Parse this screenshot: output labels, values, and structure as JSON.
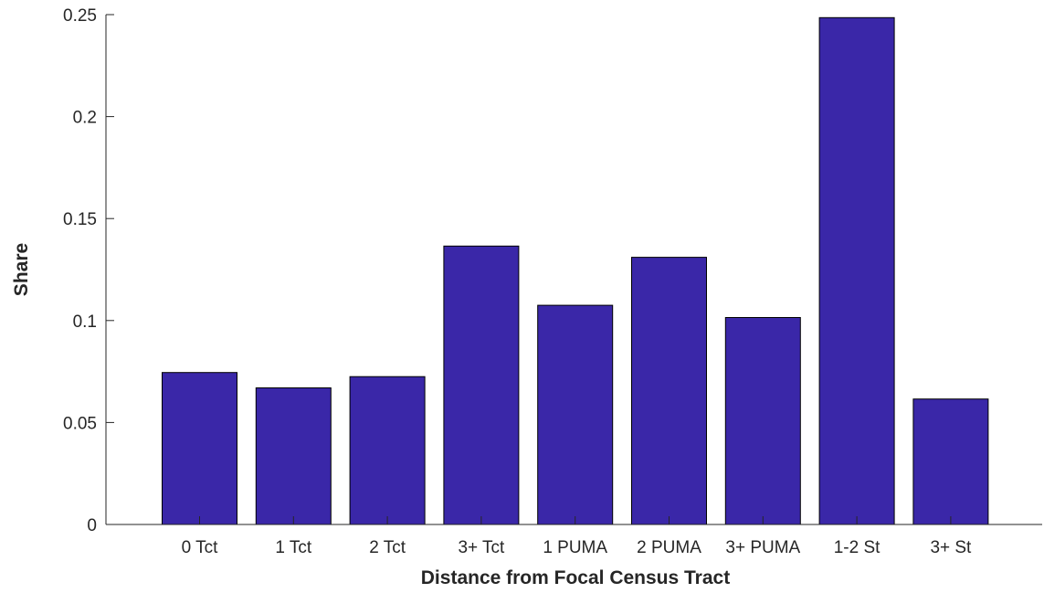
{
  "chart_data": {
    "type": "bar",
    "title": "",
    "xlabel": "Distance from Focal Census Tract",
    "ylabel": "Share",
    "categories": [
      "0 Tct",
      "1 Tct",
      "2 Tct",
      "3+ Tct",
      "1 PUMA",
      "2 PUMA",
      "3+ PUMA",
      "1-2 St",
      "3+ St"
    ],
    "values": [
      0.0745,
      0.067,
      0.0725,
      0.1365,
      0.1075,
      0.131,
      0.1015,
      0.2485,
      0.0615
    ],
    "ylim": [
      0,
      0.25
    ],
    "yticks": [
      0,
      0.05,
      0.1,
      0.15,
      0.2,
      0.25
    ],
    "ytick_labels": [
      "0",
      "0.05",
      "0.1",
      "0.15",
      "0.2",
      "0.25"
    ],
    "grid": false,
    "colors": {
      "bar_fill": "#3a27a8",
      "bar_edge": "#000000",
      "axis": "#262626"
    }
  }
}
